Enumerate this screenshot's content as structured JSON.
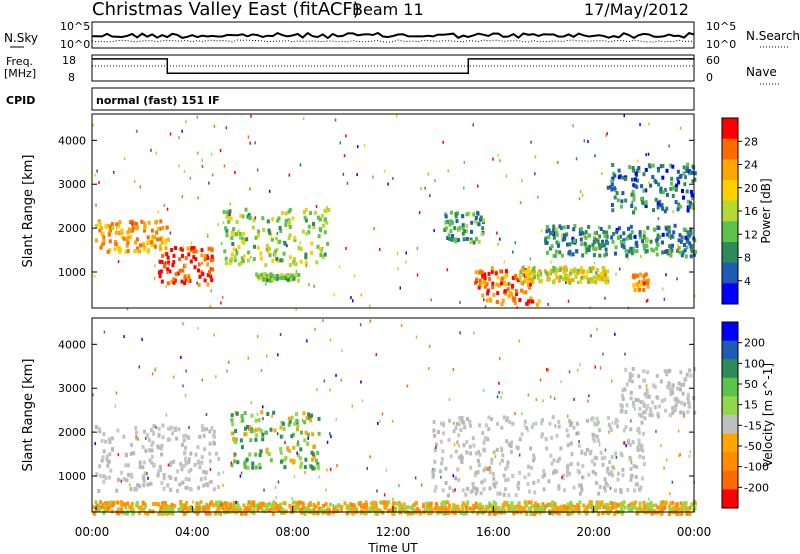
{
  "header": {
    "title": "Christmas Valley East (fitACF)",
    "beam": "Beam 11",
    "date": "17/May/2012"
  },
  "top_panels": {
    "nsky": {
      "label": "N.Sky",
      "tick_top": "10^5",
      "tick_bottom": "10^0",
      "right_label": "N.Search",
      "right_tick_top": "10^5",
      "right_tick_bottom": "10^0"
    },
    "freq": {
      "label_line1": "Freq.",
      "label_line2": "[MHz]",
      "tick_top": "18",
      "tick_bottom": "8",
      "right_label": "Nave",
      "right_tick_top": "60",
      "right_tick_bottom": "0",
      "steps": [
        {
          "t": 0.0,
          "mhz": 16.5
        },
        {
          "t": 3.0,
          "mhz": 11.0
        },
        {
          "t": 15.0,
          "mhz": 16.5
        },
        {
          "t": 24.0,
          "mhz": 16.5
        }
      ]
    },
    "cpid": {
      "label": "CPID",
      "text": "normal (fast) 151 IF"
    }
  },
  "chart_data": [
    {
      "type": "heatmap",
      "name": "power",
      "ylabel": "Slant Range [km]",
      "yticks": [
        1000,
        2000,
        3000,
        4000
      ],
      "ylim": [
        180,
        4600
      ],
      "xlim_hours": [
        0,
        24
      ],
      "colorbar": {
        "label": "Power [dB]",
        "ticks": [
          "28",
          "24",
          "20",
          "16",
          "12",
          "8",
          "4"
        ],
        "colors": [
          "#ff0000",
          "#ff6a00",
          "#ffa500",
          "#ffd000",
          "#b5d832",
          "#5ec14b",
          "#2e8b57",
          "#1f5ab5",
          "#0000ff"
        ]
      },
      "features": [
        {
          "t0": 0.1,
          "t1": 3.0,
          "r0": 1500,
          "r1": 2200,
          "level": 0.75
        },
        {
          "t0": 2.6,
          "t1": 4.8,
          "r0": 750,
          "r1": 1650,
          "level": 0.95
        },
        {
          "t0": 5.2,
          "t1": 9.4,
          "r0": 1200,
          "r1": 2500,
          "level": 0.45
        },
        {
          "t0": 6.5,
          "t1": 8.2,
          "r0": 850,
          "r1": 1000,
          "level": 0.45
        },
        {
          "t0": 14.0,
          "t1": 15.6,
          "r0": 1700,
          "r1": 2400,
          "level": 0.3
        },
        {
          "t0": 15.2,
          "t1": 17.8,
          "r0": 300,
          "r1": 1150,
          "level": 0.85
        },
        {
          "t0": 17.0,
          "t1": 20.5,
          "r0": 800,
          "r1": 1150,
          "level": 0.55
        },
        {
          "t0": 21.5,
          "t1": 22.2,
          "r0": 600,
          "r1": 1000,
          "level": 0.75
        },
        {
          "t0": 18.0,
          "t1": 24.0,
          "r0": 1400,
          "r1": 2100,
          "level": 0.25
        },
        {
          "t0": 20.5,
          "t1": 24.0,
          "r0": 2400,
          "r1": 3500,
          "level": 0.2
        }
      ]
    },
    {
      "type": "heatmap",
      "name": "velocity",
      "ylabel": "Slant Range [km]",
      "yticks": [
        1000,
        2000,
        3000,
        4000
      ],
      "ylim": [
        180,
        4600
      ],
      "xlim_hours": [
        0,
        24
      ],
      "xticks": [
        "00:00",
        "04:00",
        "08:00",
        "12:00",
        "16:00",
        "20:00",
        "00:00"
      ],
      "xlabel": "Time UT",
      "colorbar": {
        "label": "Velocity [m s^-1]",
        "ticks": [
          "200",
          "100",
          "50",
          "15",
          "-15",
          "-50",
          "-100",
          "-200"
        ],
        "colors": [
          "#0000ff",
          "#1f5ab5",
          "#2e8b57",
          "#5ec14b",
          "#8fd94a",
          "#c0c0c0",
          "#ffa500",
          "#ff8c00",
          "#ff6a00",
          "#ff0000"
        ]
      },
      "features": [
        {
          "t0": 0.1,
          "t1": 5.0,
          "r0": 700,
          "r1": 2200,
          "vel": "gray"
        },
        {
          "t0": 5.5,
          "t1": 9.0,
          "r0": 1200,
          "r1": 2500,
          "vel": "green"
        },
        {
          "t0": 13.5,
          "t1": 22.0,
          "r0": 600,
          "r1": 2400,
          "vel": "gray"
        },
        {
          "t0": 21.0,
          "t1": 24.0,
          "r0": 2400,
          "r1": 3500,
          "vel": "gray"
        },
        {
          "t0": 0.0,
          "t1": 24.0,
          "r0": 180,
          "r1": 450,
          "vel": "orange-green"
        }
      ]
    }
  ]
}
